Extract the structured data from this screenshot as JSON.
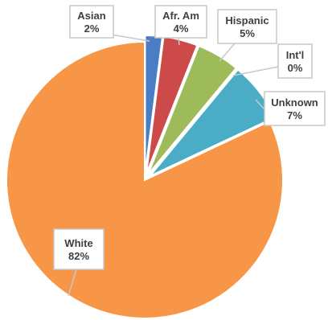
{
  "chart_data": {
    "type": "pie",
    "title": "",
    "slices": [
      {
        "label": "Asian",
        "value": 2,
        "value_label": "2%",
        "color": "#4a7dc4"
      },
      {
        "label": "Afr. Am",
        "value": 4,
        "value_label": "4%",
        "color": "#cc4a4a"
      },
      {
        "label": "Hispanic",
        "value": 5,
        "value_label": "5%",
        "color": "#9dbb59"
      },
      {
        "label": "Int'l",
        "value": 0,
        "value_label": "0%",
        "color": "#7b5ea7"
      },
      {
        "label": "Unknown",
        "value": 7,
        "value_label": "7%",
        "color": "#4aacc5"
      },
      {
        "label": "White",
        "value": 82,
        "value_label": "82%",
        "color": "#f79646"
      }
    ],
    "start_angle_deg": 0,
    "direction": "clockwise",
    "data_labels": "callouts"
  }
}
